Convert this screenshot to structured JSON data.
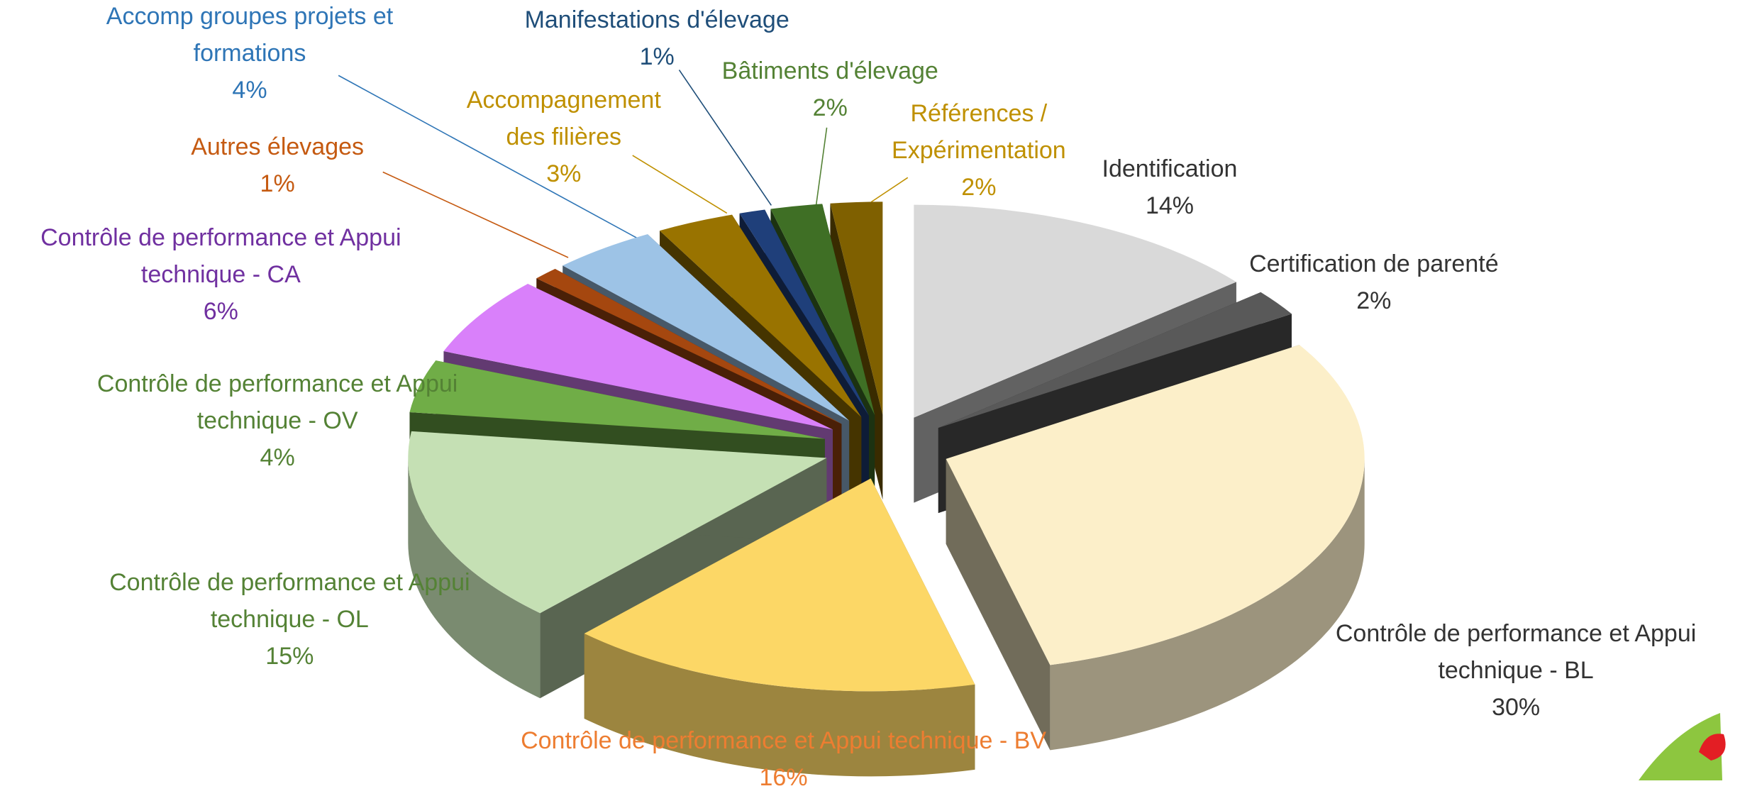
{
  "chart_data": {
    "type": "pie",
    "categories": [
      "Identification",
      "Certification de parenté",
      "Contrôle de performance et Appui technique - BL",
      "Contrôle de performance et Appui technique - BV",
      "Contrôle de performance et Appui technique - OL",
      "Contrôle de performance et Appui technique - OV",
      "Contrôle de performance et Appui technique - CA",
      "Autres élevages",
      "Accomp groupes projets et formations",
      "Accompagnement des filières",
      "Manifestations d'élevage",
      "Bâtiments d'élevage",
      "Références / Expérimentation"
    ],
    "values": [
      14,
      2,
      30,
      16,
      15,
      4,
      6,
      1,
      4,
      3,
      1,
      2,
      2
    ],
    "value_labels": [
      "14%",
      "2%",
      "30%",
      "16%",
      "15%",
      "4%",
      "6%",
      "1%",
      "4%",
      "3%",
      "1%",
      "2%",
      "2%"
    ],
    "colors": [
      "#d9d9d9",
      "#595959",
      "#fcefc9",
      "#fcd766",
      "#c5e0b4",
      "#70ad47",
      "#d980fa",
      "#a5470f",
      "#9dc3e6",
      "#997300",
      "#1f3f7a",
      "#3f6f25",
      "#7f6000"
    ],
    "label_colors": [
      "#333333",
      "#333333",
      "#333333",
      "#ed7d31",
      "#548235",
      "#548235",
      "#7030a0",
      "#c55a11",
      "#2e75b6",
      "#bf9000",
      "#1f4e79",
      "#548235",
      "#bf9000"
    ]
  }
}
